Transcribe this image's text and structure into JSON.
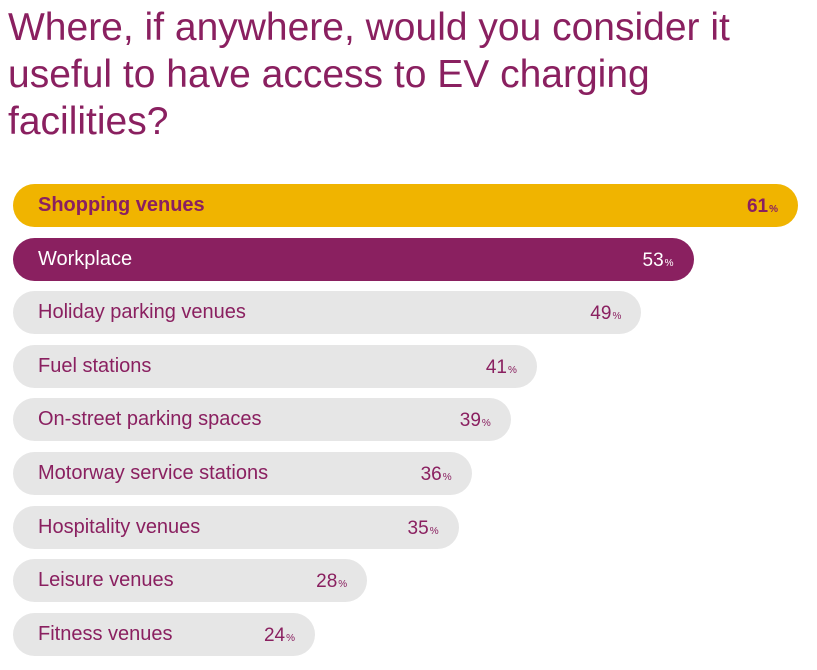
{
  "colors": {
    "title": "#8a2060",
    "highlight": "#f0b400",
    "accent": "#8a2060",
    "default_bar": "#e6e6e6",
    "default_text": "#8a2060",
    "accent_text": "#ffffff"
  },
  "chart_data": {
    "type": "bar",
    "orientation": "horizontal",
    "title": "Where, if anywhere, would you consider it useful to have access to EV charging facilities?",
    "unit": "%",
    "categories": [
      "Shopping venues",
      "Workplace",
      "Holiday parking venues",
      "Fuel stations",
      "On-street parking spaces",
      "Motorway service stations",
      "Hospitality venues",
      "Leisure venues",
      "Fitness venues"
    ],
    "values": [
      61,
      53,
      49,
      41,
      39,
      36,
      35,
      28,
      24
    ],
    "highlight": [
      "highlight",
      "accent",
      "default",
      "default",
      "default",
      "default",
      "default",
      "default",
      "default"
    ],
    "xlim": [
      0,
      61
    ],
    "grid": false,
    "legend": "none"
  }
}
